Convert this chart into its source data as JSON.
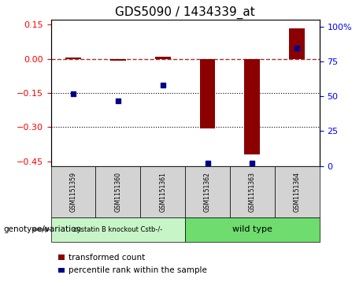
{
  "title": "GDS5090 / 1434339_at",
  "samples": [
    "GSM1151359",
    "GSM1151360",
    "GSM1151361",
    "GSM1151362",
    "GSM1151363",
    "GSM1151364"
  ],
  "transformed_count": [
    0.005,
    -0.01,
    0.01,
    -0.305,
    -0.42,
    0.135
  ],
  "percentile_rank": [
    52,
    47,
    58,
    2,
    2,
    85
  ],
  "ylim_left": [
    -0.47,
    0.17
  ],
  "ylim_right": [
    0,
    105
  ],
  "yticks_left": [
    0.15,
    0.0,
    -0.15,
    -0.3,
    -0.45
  ],
  "yticks_right": [
    100,
    75,
    50,
    25,
    0
  ],
  "hlines": [
    -0.15,
    -0.3
  ],
  "dashed_line_y": 0.0,
  "bar_color": "#8b0000",
  "dot_color": "#00008b",
  "bar_width": 0.35,
  "legend_red_label": "transformed count",
  "legend_blue_label": "percentile rank within the sample",
  "genotype_label": "genotype/variation",
  "group1_label": "cystatin B knockout Cstb-/-",
  "group2_label": "wild type",
  "group1_color": "#c8f5c8",
  "group2_color": "#6edc6e",
  "sample_box_color": "#d3d3d3",
  "background_color": "#ffffff",
  "title_fontsize": 11
}
